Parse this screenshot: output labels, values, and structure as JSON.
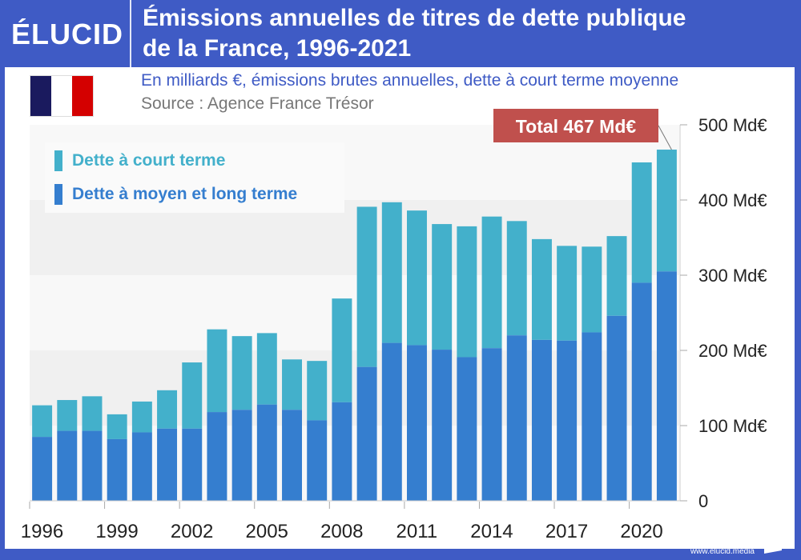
{
  "header": {
    "logo": "ÉLUCID",
    "title_line1": "Émissions annuelles de titres de dette publique",
    "title_line2": "de la France, 1996-2021",
    "subtitle": "En milliards €, émissions brutes annuelles, dette à court terme moyenne",
    "source": "Source : Agence France Trésor",
    "flag_colors": [
      "#1a1a5e",
      "#ffffff",
      "#d40000"
    ]
  },
  "footer": {
    "url": "www.elucid.media"
  },
  "colors": {
    "brand": "#3f5bc5",
    "short_term": "#43b0cb",
    "long_term": "#357ecf",
    "annotation": "#c0504d"
  },
  "chart_data": {
    "type": "bar",
    "stacked": true,
    "title": "Émissions annuelles de titres de dette publique de la France, 1996-2021",
    "subtitle": "En milliards €, émissions brutes annuelles, dette à court terme moyenne",
    "xlabel": "",
    "ylabel": "",
    "ylim": [
      0,
      500
    ],
    "yticks": [
      0,
      100,
      200,
      300,
      400,
      500
    ],
    "ytick_labels": [
      "0",
      "100 Md€",
      "200 Md€",
      "300 Md€",
      "400 Md€",
      "500 Md€"
    ],
    "xtick_labels": [
      "1996",
      "1999",
      "2002",
      "2005",
      "2008",
      "2011",
      "2014",
      "2017",
      "2020"
    ],
    "categories": [
      "1996",
      "1997",
      "1998",
      "1999",
      "2000",
      "2001",
      "2002",
      "2003",
      "2004",
      "2005",
      "2006",
      "2007",
      "2008",
      "2009",
      "2010",
      "2011",
      "2012",
      "2013",
      "2014",
      "2015",
      "2016",
      "2017",
      "2018",
      "2019",
      "2020",
      "2021"
    ],
    "series": [
      {
        "name": "Dette à moyen et long terme",
        "color": "#357ecf",
        "values": [
          85,
          93,
          93,
          82,
          91,
          96,
          96,
          118,
          121,
          128,
          121,
          107,
          131,
          178,
          210,
          207,
          201,
          191,
          203,
          220,
          214,
          213,
          224,
          246,
          290,
          305
        ]
      },
      {
        "name": "Dette à court terme",
        "color": "#43b0cb",
        "values": [
          42,
          41,
          46,
          33,
          41,
          51,
          88,
          110,
          98,
          95,
          67,
          79,
          138,
          213,
          187,
          179,
          167,
          174,
          175,
          152,
          134,
          126,
          114,
          106,
          160,
          162
        ]
      }
    ],
    "totals": [
      127,
      134,
      139,
      115,
      132,
      147,
      184,
      228,
      219,
      223,
      188,
      186,
      269,
      391,
      397,
      386,
      368,
      365,
      378,
      372,
      348,
      339,
      338,
      352,
      450,
      467
    ],
    "legend": [
      "Dette à court terme",
      "Dette à moyen et long terme"
    ],
    "legend_position": "top-left",
    "annotation": {
      "text": "Total 467 Md€",
      "category": "2021"
    },
    "grid": "alternating bands"
  }
}
